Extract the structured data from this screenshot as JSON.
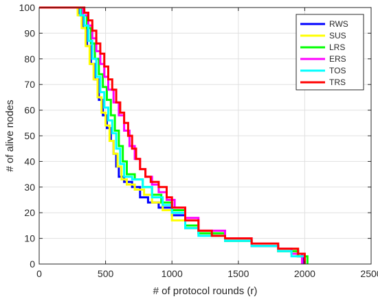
{
  "chart_data": {
    "type": "line",
    "title": "",
    "xlabel": "# of protocol rounds (r)",
    "ylabel": "# of alive nodes",
    "xlim": [
      0,
      2500
    ],
    "ylim": [
      0,
      100
    ],
    "xticks": [
      0,
      500,
      1000,
      1500,
      2000,
      2500
    ],
    "yticks": [
      0,
      10,
      20,
      30,
      40,
      50,
      60,
      70,
      80,
      90,
      100
    ],
    "grid": true,
    "legend_position": "top-right",
    "series": [
      {
        "name": "RWS",
        "color": "#0000ff",
        "points": [
          [
            0,
            100
          ],
          [
            270,
            100
          ],
          [
            300,
            97
          ],
          [
            330,
            92
          ],
          [
            360,
            85
          ],
          [
            390,
            78
          ],
          [
            420,
            72
          ],
          [
            450,
            64
          ],
          [
            480,
            58
          ],
          [
            510,
            53
          ],
          [
            540,
            48
          ],
          [
            560,
            43
          ],
          [
            580,
            38
          ],
          [
            600,
            34
          ],
          [
            640,
            32
          ],
          [
            700,
            30
          ],
          [
            760,
            26
          ],
          [
            820,
            24
          ],
          [
            900,
            22
          ],
          [
            1000,
            19
          ],
          [
            1100,
            14
          ],
          [
            1200,
            12
          ],
          [
            1400,
            9
          ],
          [
            1600,
            7
          ],
          [
            1800,
            5
          ],
          [
            1950,
            3
          ],
          [
            1990,
            0
          ]
        ]
      },
      {
        "name": "SUS",
        "color": "#ffff00",
        "points": [
          [
            0,
            100
          ],
          [
            260,
            100
          ],
          [
            290,
            97
          ],
          [
            320,
            92
          ],
          [
            350,
            85
          ],
          [
            380,
            78
          ],
          [
            410,
            72
          ],
          [
            440,
            65
          ],
          [
            470,
            59
          ],
          [
            500,
            54
          ],
          [
            530,
            48
          ],
          [
            560,
            43
          ],
          [
            590,
            38
          ],
          [
            620,
            33
          ],
          [
            660,
            31
          ],
          [
            720,
            29
          ],
          [
            790,
            27
          ],
          [
            850,
            24
          ],
          [
            930,
            21
          ],
          [
            1000,
            17
          ],
          [
            1100,
            14
          ],
          [
            1200,
            12
          ],
          [
            1400,
            9
          ],
          [
            1600,
            7
          ],
          [
            1800,
            5
          ],
          [
            1940,
            3
          ],
          [
            1980,
            0
          ]
        ]
      },
      {
        "name": "LRS",
        "color": "#00ff00",
        "points": [
          [
            0,
            100
          ],
          [
            290,
            100
          ],
          [
            320,
            97
          ],
          [
            360,
            92
          ],
          [
            390,
            86
          ],
          [
            420,
            80
          ],
          [
            450,
            74
          ],
          [
            480,
            69
          ],
          [
            510,
            64
          ],
          [
            540,
            58
          ],
          [
            570,
            52
          ],
          [
            600,
            46
          ],
          [
            630,
            40
          ],
          [
            660,
            35
          ],
          [
            720,
            33
          ],
          [
            780,
            30
          ],
          [
            850,
            27
          ],
          [
            920,
            24
          ],
          [
            1000,
            21
          ],
          [
            1100,
            15
          ],
          [
            1200,
            12
          ],
          [
            1400,
            9
          ],
          [
            1600,
            7
          ],
          [
            1800,
            5
          ],
          [
            1950,
            3
          ],
          [
            2020,
            0
          ]
        ]
      },
      {
        "name": "ERS",
        "color": "#ff00ff",
        "points": [
          [
            0,
            100
          ],
          [
            300,
            100
          ],
          [
            330,
            97
          ],
          [
            370,
            93
          ],
          [
            400,
            88
          ],
          [
            430,
            83
          ],
          [
            460,
            78
          ],
          [
            490,
            73
          ],
          [
            520,
            68
          ],
          [
            560,
            63
          ],
          [
            600,
            58
          ],
          [
            640,
            52
          ],
          [
            680,
            46
          ],
          [
            720,
            41
          ],
          [
            760,
            37
          ],
          [
            800,
            34
          ],
          [
            850,
            31
          ],
          [
            900,
            28
          ],
          [
            960,
            25
          ],
          [
            1020,
            22
          ],
          [
            1100,
            18
          ],
          [
            1200,
            13
          ],
          [
            1400,
            10
          ],
          [
            1600,
            7
          ],
          [
            1800,
            6
          ],
          [
            1900,
            4
          ],
          [
            1980,
            0
          ]
        ]
      },
      {
        "name": "TOS",
        "color": "#00ffff",
        "points": [
          [
            0,
            100
          ],
          [
            280,
            100
          ],
          [
            310,
            97
          ],
          [
            340,
            93
          ],
          [
            370,
            87
          ],
          [
            400,
            80
          ],
          [
            430,
            73
          ],
          [
            460,
            67
          ],
          [
            490,
            61
          ],
          [
            520,
            56
          ],
          [
            550,
            51
          ],
          [
            580,
            45
          ],
          [
            610,
            39
          ],
          [
            640,
            34
          ],
          [
            700,
            33
          ],
          [
            780,
            30
          ],
          [
            850,
            26
          ],
          [
            930,
            23
          ],
          [
            1000,
            20
          ],
          [
            1100,
            14
          ],
          [
            1200,
            11
          ],
          [
            1400,
            9
          ],
          [
            1600,
            7
          ],
          [
            1800,
            5
          ],
          [
            1900,
            3
          ],
          [
            2000,
            0
          ]
        ]
      },
      {
        "name": "TRS",
        "color": "#ff0000",
        "points": [
          [
            0,
            100
          ],
          [
            310,
            100
          ],
          [
            340,
            98
          ],
          [
            370,
            95
          ],
          [
            400,
            91
          ],
          [
            430,
            86
          ],
          [
            460,
            82
          ],
          [
            490,
            77
          ],
          [
            520,
            72
          ],
          [
            550,
            68
          ],
          [
            580,
            63
          ],
          [
            610,
            59
          ],
          [
            640,
            55
          ],
          [
            670,
            50
          ],
          [
            700,
            45
          ],
          [
            730,
            41
          ],
          [
            760,
            37
          ],
          [
            800,
            34
          ],
          [
            840,
            32
          ],
          [
            900,
            30
          ],
          [
            960,
            26
          ],
          [
            1000,
            22
          ],
          [
            1100,
            17
          ],
          [
            1200,
            13
          ],
          [
            1300,
            11
          ],
          [
            1400,
            10
          ],
          [
            1600,
            8
          ],
          [
            1800,
            6
          ],
          [
            1950,
            4
          ],
          [
            2000,
            0
          ]
        ]
      }
    ]
  }
}
